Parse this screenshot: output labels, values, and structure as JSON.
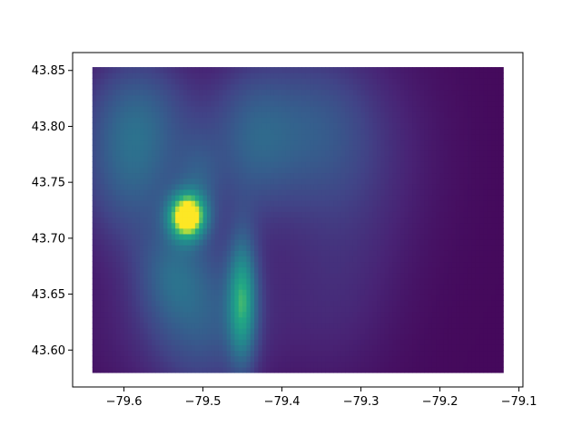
{
  "chart_data": {
    "type": "heatmap",
    "title": "",
    "xlabel": "",
    "ylabel": "",
    "xlim": [
      -79.665,
      -79.095
    ],
    "ylim": [
      43.567,
      43.866
    ],
    "x_ticks": [
      {
        "value": -79.6,
        "label": "−79.6"
      },
      {
        "value": -79.5,
        "label": "−79.5"
      },
      {
        "value": -79.4,
        "label": "−79.4"
      },
      {
        "value": -79.3,
        "label": "−79.3"
      },
      {
        "value": -79.2,
        "label": "−79.2"
      },
      {
        "value": -79.1,
        "label": "−79.1"
      }
    ],
    "y_ticks": [
      {
        "value": 43.6,
        "label": "43.60"
      },
      {
        "value": 43.65,
        "label": "43.65"
      },
      {
        "value": 43.7,
        "label": "43.70"
      },
      {
        "value": 43.75,
        "label": "43.75"
      },
      {
        "value": 43.8,
        "label": "43.80"
      },
      {
        "value": 43.85,
        "label": "43.85"
      }
    ],
    "grid": false,
    "colormap": "viridis",
    "x_range": [
      -79.64,
      -79.12
    ],
    "y_range": [
      43.58,
      43.853
    ],
    "base_value": 0.03,
    "hotspots": [
      {
        "x": -79.52,
        "y": 43.72,
        "peak": 0.95,
        "sx": 0.016,
        "sy": 0.014
      },
      {
        "x": -79.45,
        "y": 43.645,
        "peak": 0.55,
        "sx": 0.013,
        "sy": 0.04
      },
      {
        "x": -79.505,
        "y": 43.75,
        "peak": 0.18,
        "sx": 0.02,
        "sy": 0.03
      },
      {
        "x": -79.59,
        "y": 43.76,
        "peak": 0.33,
        "sx": 0.05,
        "sy": 0.05
      },
      {
        "x": -79.58,
        "y": 43.82,
        "peak": 0.22,
        "sx": 0.05,
        "sy": 0.04
      },
      {
        "x": -79.44,
        "y": 43.79,
        "peak": 0.3,
        "sx": 0.04,
        "sy": 0.05
      },
      {
        "x": -79.36,
        "y": 43.8,
        "peak": 0.22,
        "sx": 0.05,
        "sy": 0.05
      },
      {
        "x": -79.5,
        "y": 43.63,
        "peak": 0.32,
        "sx": 0.05,
        "sy": 0.05
      },
      {
        "x": -79.54,
        "y": 43.67,
        "peak": 0.2,
        "sx": 0.03,
        "sy": 0.03
      },
      {
        "x": -79.6,
        "y": 43.62,
        "peak": 0.06,
        "sx": 0.06,
        "sy": 0.05
      },
      {
        "x": -79.3,
        "y": 43.78,
        "peak": 0.12,
        "sx": 0.07,
        "sy": 0.07
      },
      {
        "x": -79.33,
        "y": 43.68,
        "peak": 0.07,
        "sx": 0.06,
        "sy": 0.06
      },
      {
        "x": -79.35,
        "y": 43.62,
        "peak": 0.06,
        "sx": 0.06,
        "sy": 0.05
      }
    ]
  }
}
